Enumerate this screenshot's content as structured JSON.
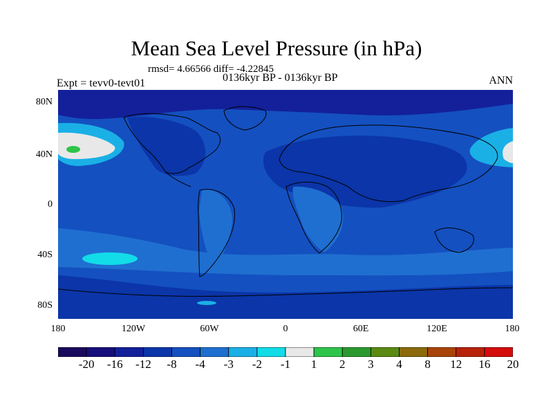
{
  "title": "Mean Sea Level Pressure (in hPa)",
  "stats": "rmsd= 4.66566 diff= -4.22845",
  "left_label": "Expt = tevv0-tevt01",
  "center_label": "0136kyr BP - 0136kyr BP",
  "right_label": "ANN",
  "lat_ticks": [
    "80N",
    "40N",
    "0",
    "40S",
    "80S"
  ],
  "lon_ticks": [
    "180",
    "120W",
    "60W",
    "0",
    "60E",
    "120E",
    "180"
  ],
  "colorbar": {
    "labels": [
      "-20",
      "-16",
      "-12",
      "-8",
      "-4",
      "-3",
      "-2",
      "-1",
      "1",
      "2",
      "3",
      "4",
      "8",
      "12",
      "16",
      "20"
    ],
    "colors": [
      "#1a0a5c",
      "#160f7a",
      "#13209a",
      "#0b35a8",
      "#1450c0",
      "#1f6fd0",
      "#1ab0e6",
      "#12dce8",
      "#e8e8e8",
      "#2ec44a",
      "#2b9a2e",
      "#5a8a12",
      "#8a6a0a",
      "#a8440a",
      "#b8220a",
      "#d40c0c"
    ]
  },
  "palette": {
    "ocean_base": "#1450c0",
    "land_dark": "#0b35a8",
    "polar_dark": "#13209a",
    "cyan": "#12dce8",
    "light_blue": "#1f6fd0",
    "sky": "#1ab0e6",
    "gray": "#e8e8e8",
    "green": "#2ec44a",
    "coast": "#000000"
  }
}
